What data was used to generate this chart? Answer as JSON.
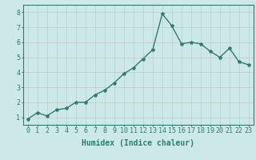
{
  "x": [
    0,
    1,
    2,
    3,
    4,
    5,
    6,
    7,
    8,
    9,
    10,
    11,
    12,
    13,
    14,
    15,
    16,
    17,
    18,
    19,
    20,
    21,
    22,
    23
  ],
  "y": [
    0.9,
    1.3,
    1.1,
    1.5,
    1.6,
    2.0,
    2.0,
    2.5,
    2.8,
    3.3,
    3.9,
    4.3,
    4.9,
    5.5,
    7.9,
    7.1,
    5.9,
    6.0,
    5.9,
    5.4,
    5.0,
    5.6,
    4.7,
    4.5
  ],
  "line_color": "#2e7d6e",
  "marker": "*",
  "marker_size": 3,
  "bg_color": "#cce8e8",
  "grid_color": "#c8c8c8",
  "xlabel": "Humidex (Indice chaleur)",
  "xlabel_fontsize": 7,
  "tick_fontsize": 6,
  "ylim": [
    0.5,
    8.5
  ],
  "yticks": [
    1,
    2,
    3,
    4,
    5,
    6,
    7,
    8
  ],
  "xticks": [
    0,
    1,
    2,
    3,
    4,
    5,
    6,
    7,
    8,
    9,
    10,
    11,
    12,
    13,
    14,
    15,
    16,
    17,
    18,
    19,
    20,
    21,
    22,
    23
  ],
  "spine_color": "#2e7d6e",
  "line_width": 1.0
}
